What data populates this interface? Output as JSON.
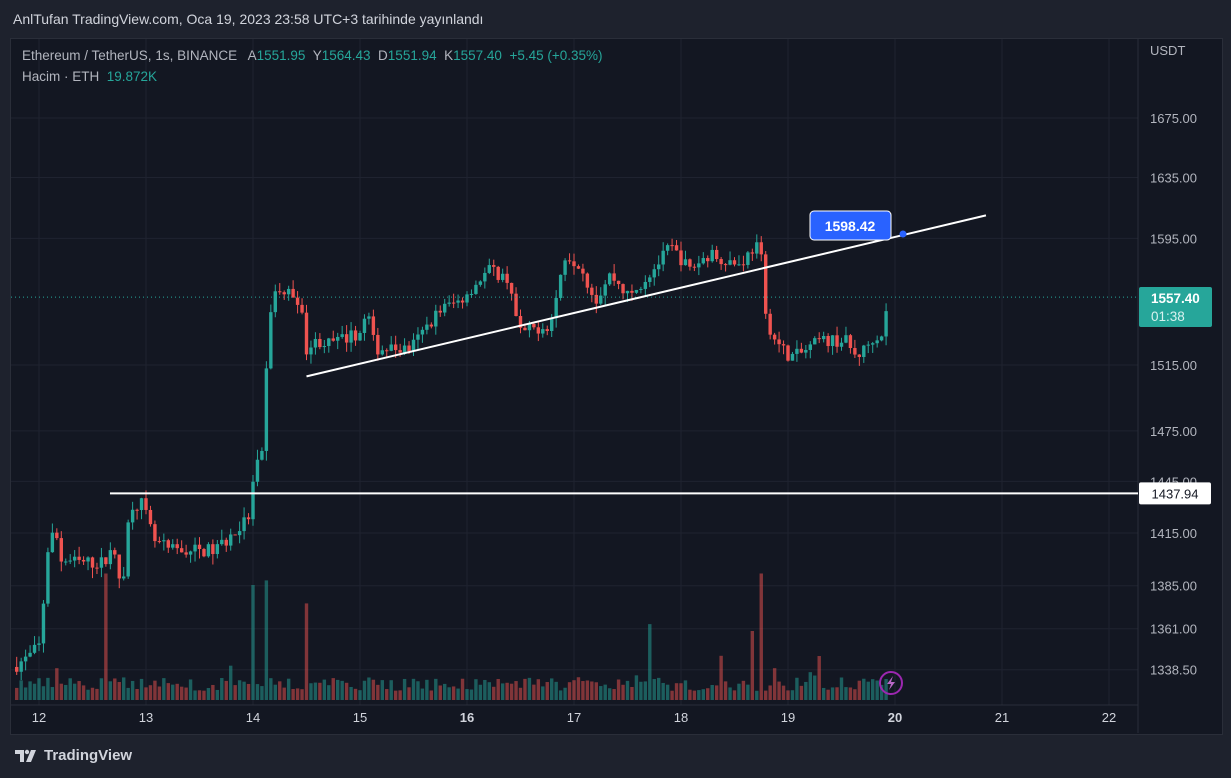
{
  "published": "AnlTufan TradingView.com, Oca 19, 2023 23:58 UTC+3 tarihinde yayınlandı",
  "legend": {
    "symbol": "Ethereum / TetherUS, 1s, BINANCE",
    "open_label": "A",
    "open": "1551.95",
    "high_label": "Y",
    "high": "1564.43",
    "low_label": "D",
    "low": "1551.94",
    "close_label": "K",
    "close": "1557.40",
    "change": "+5.45 (+0.35%)",
    "volume_label": "Hacim · ETH",
    "volume": "19.872K"
  },
  "brand": "TradingView",
  "colors": {
    "up": "#26a69a",
    "down": "#ef5350",
    "accent": "#2962ff",
    "bg": "#131722"
  },
  "chart_data": {
    "type": "candlestick",
    "scale": "log",
    "y_unit": "USDT",
    "y_ticks": [
      "1675.00",
      "1635.00",
      "1595.00",
      "1515.00",
      "1475.00",
      "1445.00",
      "1415.00",
      "1385.00",
      "1361.00",
      "1338.50"
    ],
    "x_ticks": [
      "12",
      "13",
      "14",
      "15",
      "16",
      "17",
      "18",
      "19",
      "20",
      "21",
      "22"
    ],
    "close_path": [
      [
        11.75,
        1340
      ],
      [
        11.9,
        1345
      ],
      [
        12.01,
        1352
      ],
      [
        12.08,
        1405
      ],
      [
        12.15,
        1418
      ],
      [
        12.2,
        1400
      ],
      [
        12.38,
        1398
      ],
      [
        12.62,
        1398
      ],
      [
        12.68,
        1410
      ],
      [
        12.74,
        1388
      ],
      [
        12.8,
        1395
      ],
      [
        12.85,
        1432
      ],
      [
        12.96,
        1432
      ],
      [
        13.08,
        1410
      ],
      [
        13.22,
        1405
      ],
      [
        13.64,
        1405
      ],
      [
        13.83,
        1415
      ],
      [
        13.97,
        1425
      ],
      [
        14.02,
        1455
      ],
      [
        14.08,
        1455
      ],
      [
        14.14,
        1530
      ],
      [
        14.18,
        1560
      ],
      [
        14.35,
        1560
      ],
      [
        14.44,
        1555
      ],
      [
        14.49,
        1525
      ],
      [
        14.61,
        1530
      ],
      [
        14.72,
        1528
      ],
      [
        15.0,
        1535
      ],
      [
        15.07,
        1548
      ],
      [
        15.14,
        1525
      ],
      [
        15.47,
        1525
      ],
      [
        15.75,
        1550
      ],
      [
        15.93,
        1555
      ],
      [
        16.21,
        1575
      ],
      [
        16.4,
        1568
      ],
      [
        16.48,
        1535
      ],
      [
        16.78,
        1540
      ],
      [
        16.92,
        1585
      ],
      [
        17.06,
        1578
      ],
      [
        17.2,
        1555
      ],
      [
        17.34,
        1572
      ],
      [
        17.52,
        1557
      ],
      [
        17.8,
        1580
      ],
      [
        17.9,
        1590
      ],
      [
        18.08,
        1575
      ],
      [
        18.27,
        1585
      ],
      [
        18.55,
        1578
      ],
      [
        18.69,
        1590
      ],
      [
        18.74,
        1590
      ],
      [
        18.79,
        1545
      ],
      [
        18.88,
        1530
      ],
      [
        19.02,
        1520
      ],
      [
        19.12,
        1522
      ],
      [
        19.3,
        1530
      ],
      [
        19.54,
        1530
      ],
      [
        19.63,
        1520
      ],
      [
        19.72,
        1525
      ],
      [
        19.82,
        1535
      ],
      [
        19.86,
        1530
      ],
      [
        19.95,
        1557.4
      ]
    ],
    "volume_spikes": [
      [
        12.62,
        0.55
      ],
      [
        14.0,
        0.5
      ],
      [
        14.14,
        0.52
      ],
      [
        14.49,
        0.42
      ],
      [
        18.76,
        0.55
      ],
      [
        18.67,
        0.3
      ],
      [
        17.7,
        0.33
      ]
    ],
    "horizontal_line": {
      "price": "1437.94"
    },
    "trend_line": {
      "from": [
        14.5,
        1508
      ],
      "to": [
        20.85,
        1610
      ]
    },
    "trend_label": "1598.42",
    "last_price": "1557.40",
    "countdown": "01:38"
  }
}
